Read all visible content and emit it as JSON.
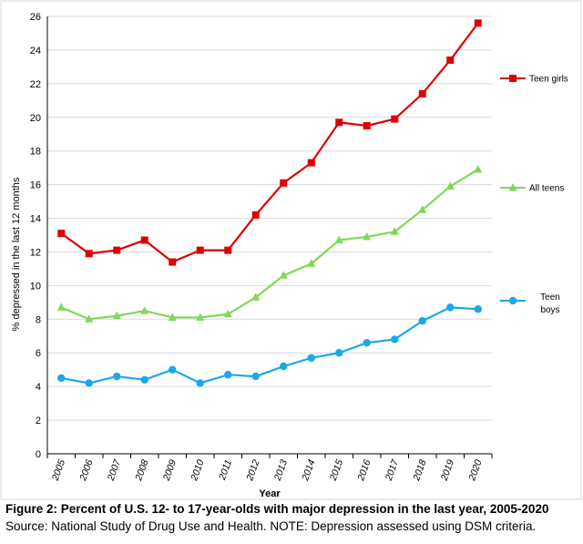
{
  "chart_data": {
    "type": "line",
    "xlabel": "Year",
    "ylabel": "% depressed in the last 12 months",
    "ylim": [
      0,
      26
    ],
    "yticks": [
      "0",
      "2",
      "4",
      "6",
      "8",
      "10",
      "12",
      "14",
      "16",
      "18",
      "20",
      "22",
      "24",
      "26"
    ],
    "categories": [
      "2005",
      "2006",
      "2007",
      "2008",
      "2009",
      "2010",
      "2011",
      "2012",
      "2013",
      "2014",
      "2015",
      "2016",
      "2017",
      "2018",
      "2019",
      "2020"
    ],
    "grid": "horizontal",
    "legend_placement": "right",
    "series": [
      {
        "name": "Teen girls",
        "color": "#e00000",
        "marker": "square",
        "values": [
          13.1,
          11.9,
          12.1,
          12.7,
          11.4,
          12.1,
          12.1,
          14.2,
          16.1,
          17.3,
          19.7,
          19.5,
          19.9,
          21.4,
          23.4,
          25.6
        ]
      },
      {
        "name": "All teens",
        "color": "#7ed957",
        "marker": "triangle",
        "values": [
          8.7,
          8.0,
          8.2,
          8.5,
          8.1,
          8.1,
          8.3,
          9.3,
          10.6,
          11.3,
          12.7,
          12.9,
          13.2,
          14.5,
          15.9,
          16.9
        ]
      },
      {
        "name": "Teen\nboys",
        "color": "#1aa9e8",
        "marker": "circle",
        "values": [
          4.5,
          4.2,
          4.6,
          4.4,
          5.0,
          4.2,
          4.7,
          4.6,
          5.2,
          5.7,
          6.0,
          6.6,
          6.8,
          7.9,
          8.7,
          8.6
        ]
      }
    ]
  },
  "caption": {
    "title": "Figure 2: Percent of U.S. 12- to 17-year-olds with major depression in the last year, 2005-2020",
    "source": "Source: National Study of Drug Use and Health. NOTE: Depression assessed using DSM criteria."
  }
}
